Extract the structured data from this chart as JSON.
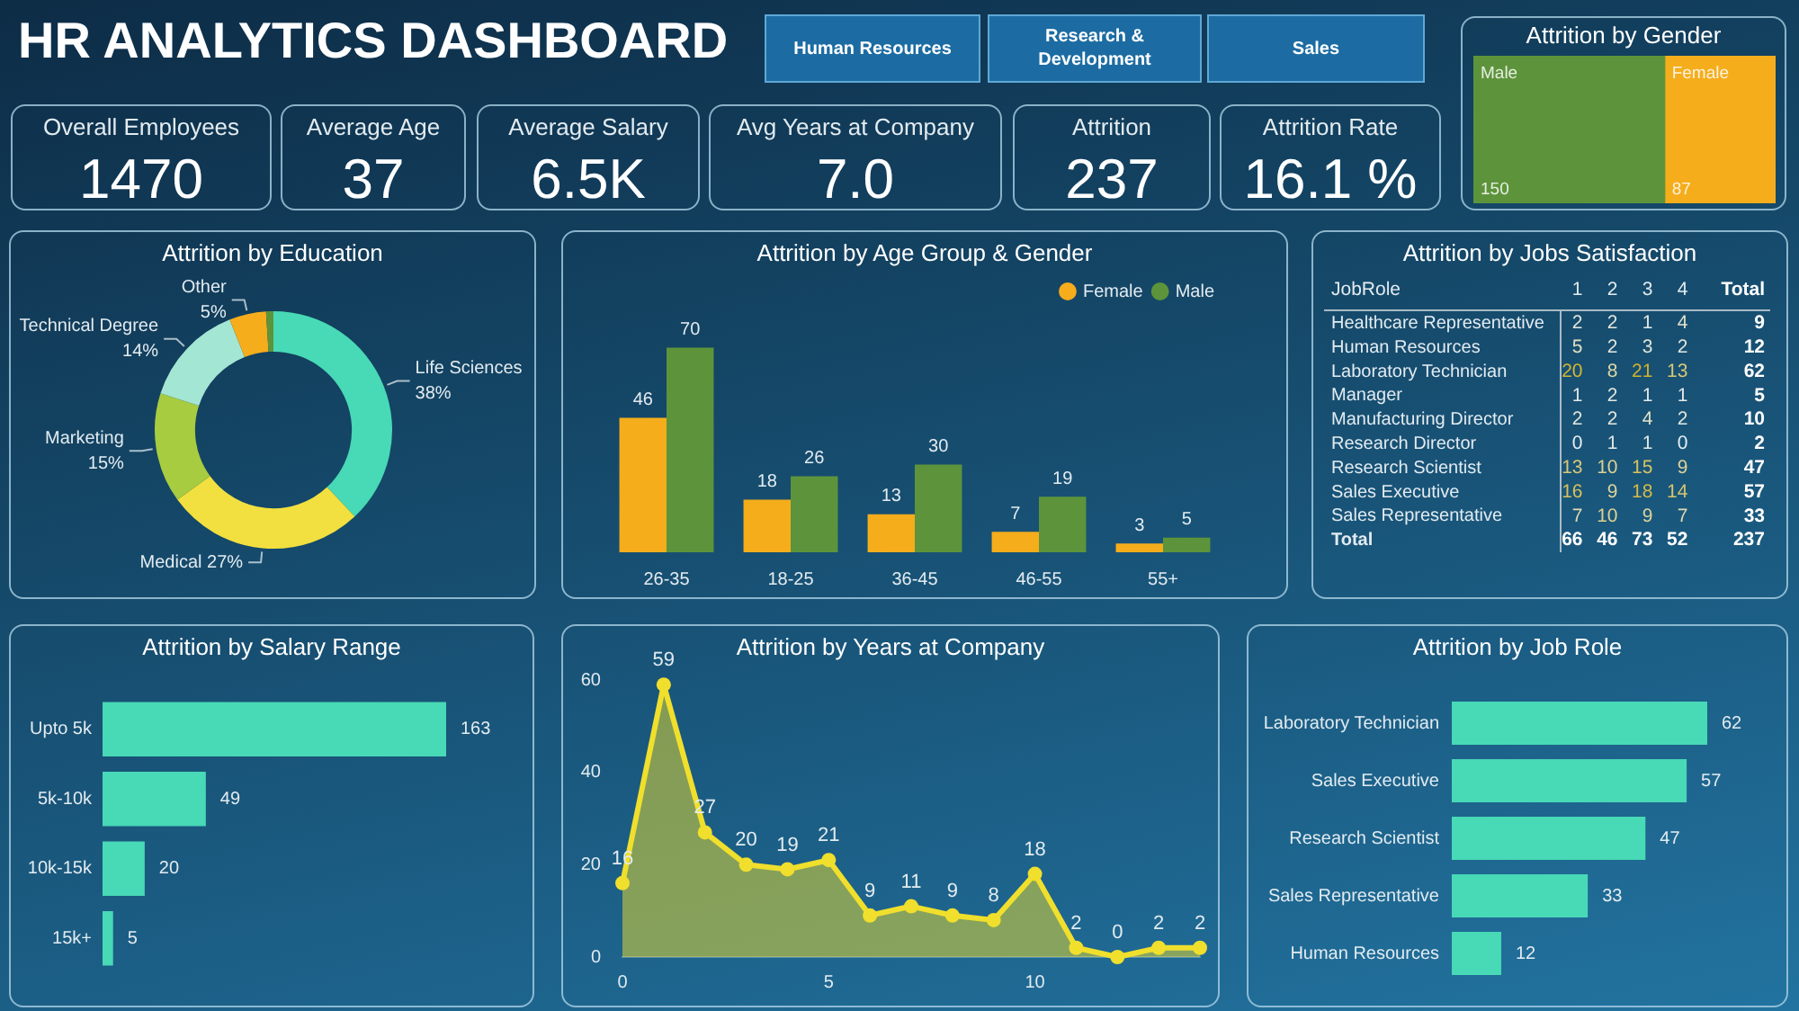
{
  "chart_data": [
    {
      "type": "other",
      "title": "HR ANALYTICS DASHBOARD",
      "annotations": [
        "Human Resources",
        "Research & Development",
        "Sales"
      ]
    },
    {
      "type": "other",
      "title": "Overall Employees",
      "annotations": [
        "1470"
      ]
    },
    {
      "type": "other",
      "title": "Average Age",
      "annotations": [
        "37"
      ]
    },
    {
      "type": "other",
      "title": "Average Salary",
      "annotations": [
        "6.5K"
      ]
    },
    {
      "type": "other",
      "title": "Avg Years at Company",
      "annotations": [
        "7.0"
      ]
    },
    {
      "type": "other",
      "title": "Attrition",
      "annotations": [
        "237"
      ]
    },
    {
      "type": "other",
      "title": "Attrition Rate",
      "annotations": [
        "16.1 %"
      ]
    },
    {
      "type": "other",
      "title": "Attrition by Gender",
      "categories": [
        "Male",
        "Female"
      ],
      "values": [
        150,
        87
      ],
      "colors": [
        "#5d943b",
        "#f5ad1c"
      ],
      "data_labels": true
    },
    {
      "type": "donut",
      "title": "Attrition by Education",
      "categories": [
        "Life Sciences",
        "Medical",
        "Marketing",
        "Technical Degree",
        "Other",
        null
      ],
      "values": [
        38,
        27,
        15,
        14,
        5,
        1
      ],
      "colors": [
        "#48d9b6",
        "#f1e03f",
        "#a7cc3f",
        "#a4e6d4",
        "#f5ad1c",
        "#5d943b"
      ],
      "value_labels": [
        "38%",
        "27%",
        "15%",
        "14%",
        "5%",
        null
      ]
    },
    {
      "type": "bar",
      "title": "Attrition by Age Group & Gender",
      "categories": [
        "26-35",
        "18-25",
        "36-45",
        "46-55",
        "55+"
      ],
      "series": [
        {
          "name": "Female",
          "color": "#f5ad1c",
          "values": [
            46,
            18,
            13,
            7,
            3
          ]
        },
        {
          "name": "Male",
          "color": "#5d943b",
          "values": [
            70,
            26,
            30,
            19,
            5
          ]
        }
      ],
      "data_labels": true,
      "legend": "top right",
      "tick_labels": "x"
    },
    {
      "type": "heatmap",
      "title": "Attrition by Jobs Satisfaction",
      "ylabel": "JobRole",
      "categories": [
        "1",
        "2",
        "3",
        "4",
        "Total"
      ],
      "y_categories": [
        "Healthcare Representative",
        "Human Resources",
        "Laboratory Technician",
        "Manager",
        "Manufacturing Director",
        "Research Director",
        "Research Scientist",
        "Sales Executive",
        "Sales Representative",
        "Total"
      ],
      "cells": [
        [
          2,
          2,
          1,
          4,
          9
        ],
        [
          5,
          2,
          3,
          2,
          12
        ],
        [
          20,
          8,
          21,
          13,
          62
        ],
        [
          1,
          2,
          1,
          1,
          5
        ],
        [
          2,
          2,
          4,
          2,
          10
        ],
        [
          0,
          1,
          1,
          0,
          2
        ],
        [
          13,
          10,
          15,
          9,
          47
        ],
        [
          16,
          9,
          18,
          14,
          57
        ],
        [
          7,
          10,
          9,
          7,
          33
        ],
        [
          66,
          46,
          73,
          52,
          237
        ]
      ],
      "data_labels": true
    },
    {
      "type": "bar",
      "orientation": "horizontal",
      "title": "Attrition by Salary Range",
      "categories": [
        "Upto 5k",
        "5k-10k",
        "10k-15k",
        "15k+"
      ],
      "values": [
        163,
        49,
        20,
        5
      ],
      "color": "#48d9b6",
      "data_labels": true,
      "tick_labels": "y"
    },
    {
      "type": "area",
      "title": "Attrition by Years at Company",
      "x": [
        0,
        1,
        2,
        3,
        4,
        5,
        6,
        7,
        8,
        9,
        10,
        11,
        12,
        13,
        14
      ],
      "values": [
        16,
        59,
        27,
        20,
        19,
        21,
        9,
        11,
        9,
        8,
        18,
        2,
        0,
        2,
        2
      ],
      "color": "#f0df2c",
      "marker": "circle",
      "data_labels": true,
      "xlim": [
        0,
        14
      ],
      "xticks": [
        0,
        5,
        10
      ],
      "ylim": [
        0,
        60
      ],
      "yticks": [
        0,
        20,
        40,
        60
      ]
    },
    {
      "type": "bar",
      "orientation": "horizontal",
      "title": "Attrition by Job Role",
      "categories": [
        "Laboratory Technician",
        "Sales Executive",
        "Research Scientist",
        "Sales Representative",
        "Human Resources"
      ],
      "values": [
        62,
        57,
        47,
        33,
        12
      ],
      "color": "#48d9b6",
      "data_labels": true,
      "tick_labels": "y"
    }
  ]
}
